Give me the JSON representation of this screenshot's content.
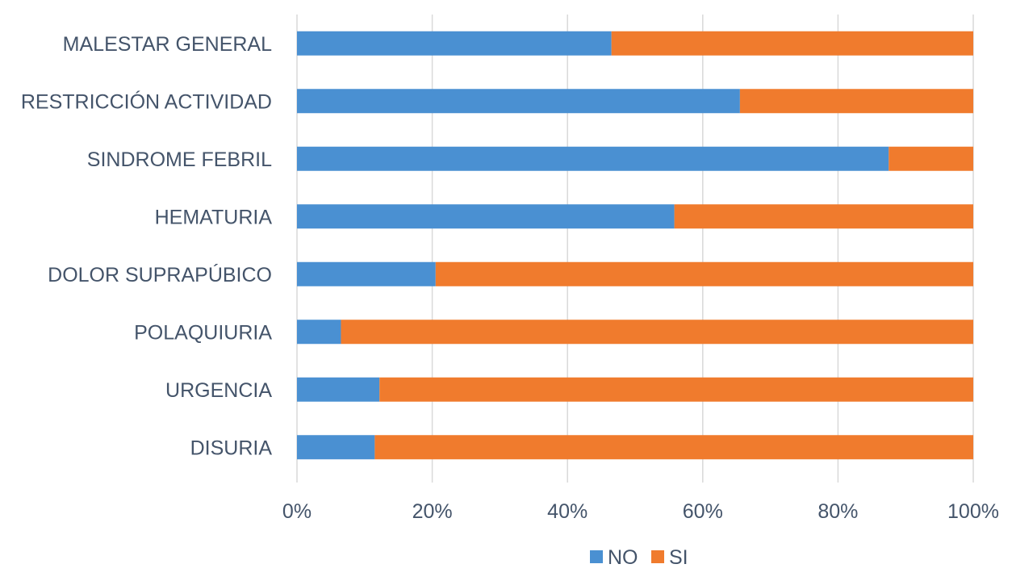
{
  "chart_data": {
    "type": "bar",
    "orientation": "horizontal",
    "stacked": "percent",
    "categories": [
      "MALESTAR GENERAL",
      "RESTRICCIÓN ACTIVIDAD",
      "SINDROME FEBRIL",
      "HEMATURIA",
      "DOLOR SUPRAPÚBICO",
      "POLAQUIURIA",
      "URGENCIA",
      "DISURIA"
    ],
    "series": [
      {
        "name": "NO",
        "color": "#4a90d2",
        "values": [
          46.5,
          65.5,
          87.5,
          55.8,
          20.5,
          6.5,
          12.2,
          11.5
        ]
      },
      {
        "name": "SI",
        "color": "#f07b2d",
        "values": [
          53.5,
          34.5,
          12.5,
          44.2,
          79.5,
          93.5,
          87.8,
          88.5
        ]
      }
    ],
    "x_ticks": [
      "0%",
      "20%",
      "40%",
      "60%",
      "80%",
      "100%"
    ],
    "xlim": [
      0,
      100
    ],
    "grid": true,
    "legend_position": "bottom",
    "title": "",
    "xlabel": "",
    "ylabel": ""
  }
}
